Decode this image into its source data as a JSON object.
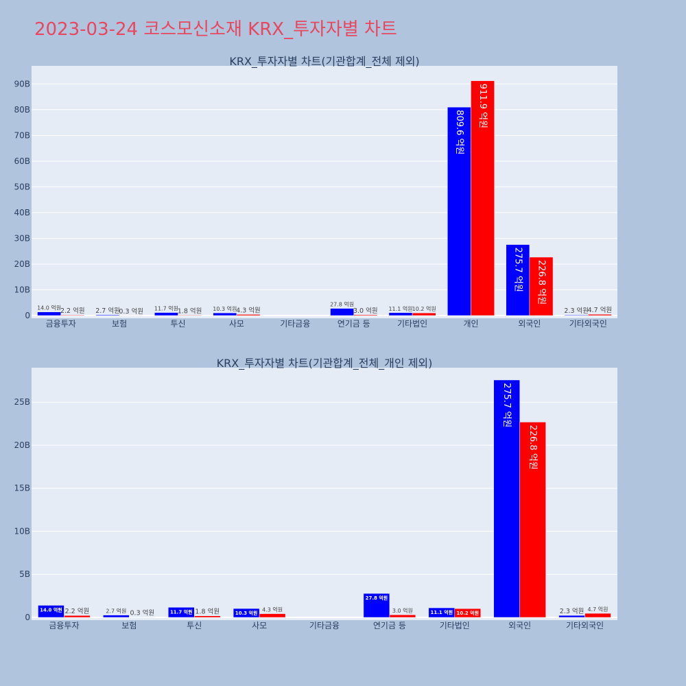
{
  "page": {
    "title": "2023-03-24 코스모신소재 KRX_투자자별 차트"
  },
  "colors": {
    "background": "#b0c4de",
    "plot_background": "#e5ecf6",
    "title": "#e8475f",
    "buy": "#0000ff",
    "sell": "#ff0000"
  },
  "chart_data": [
    {
      "type": "bar",
      "title": "KRX_투자자별 차트(기관합계_전체 제외)",
      "categories": [
        "금융투자",
        "보험",
        "투신",
        "사모",
        "기타금융",
        "연기금 등",
        "기타법인",
        "개인",
        "외국인",
        "기타외국인"
      ],
      "series": [
        {
          "color": "#0000ff",
          "values": [
            1400000000,
            270000000,
            1170000000,
            1030000000,
            0,
            2780000000,
            1110000000,
            80960000000,
            27570000000,
            230000000
          ],
          "labels": [
            "14.0 억원",
            "2.7 억원",
            "11.7 억원",
            "10.3 억원",
            "",
            "27.8 억원",
            "11.1 억원",
            "809.6 억원",
            "275.7 억원",
            "2.3 억원"
          ]
        },
        {
          "color": "#ff0000",
          "values": [
            220000000,
            30000000,
            180000000,
            430000000,
            0,
            300000000,
            1020000000,
            91190000000,
            22680000000,
            470000000
          ],
          "labels": [
            "2.2 억원",
            "0.3 억원",
            "1.8 억원",
            "4.3 억원",
            "",
            "3.0 억원",
            "10.2 억원",
            "911.9 억원",
            "226.8 억원",
            "4.7 억원"
          ]
        }
      ],
      "ylim": [
        0,
        97000000000
      ],
      "yticks": [
        0,
        10000000000,
        20000000000,
        30000000000,
        40000000000,
        50000000000,
        60000000000,
        70000000000,
        80000000000,
        90000000000
      ],
      "ytick_labels": [
        "0",
        "10B",
        "20B",
        "30B",
        "40B",
        "50B",
        "60B",
        "70B",
        "80B",
        "90B"
      ],
      "grid": true
    },
    {
      "type": "bar",
      "title": "KRX_투자자별 차트(기관합계_전체_개인 제외)",
      "categories": [
        "금융투자",
        "보험",
        "투신",
        "사모",
        "기타금융",
        "연기금 등",
        "기타법인",
        "외국인",
        "기타외국인"
      ],
      "series": [
        {
          "color": "#0000ff",
          "values": [
            1400000000,
            270000000,
            1170000000,
            1030000000,
            0,
            2780000000,
            1110000000,
            27570000000,
            230000000
          ],
          "labels": [
            "14.0 억원",
            "2.7 억원",
            "11.7 억원",
            "10.3 억원",
            "",
            "27.8 억원",
            "11.1 억원",
            "275.7 억원",
            "2.3 억원"
          ]
        },
        {
          "color": "#ff0000",
          "values": [
            220000000,
            30000000,
            180000000,
            430000000,
            0,
            300000000,
            1020000000,
            22680000000,
            470000000
          ],
          "labels": [
            "2.2 억원",
            "0.3 억원",
            "1.8 억원",
            "4.3 억원",
            "",
            "3.0 억원",
            "10.2 억원",
            "226.8 억원",
            "4.7 억원"
          ]
        }
      ],
      "ylim": [
        0,
        29000000000
      ],
      "yticks": [
        0,
        5000000000,
        10000000000,
        15000000000,
        20000000000,
        25000000000
      ],
      "ytick_labels": [
        "0",
        "5B",
        "10B",
        "15B",
        "20B",
        "25B"
      ],
      "grid": true
    }
  ]
}
